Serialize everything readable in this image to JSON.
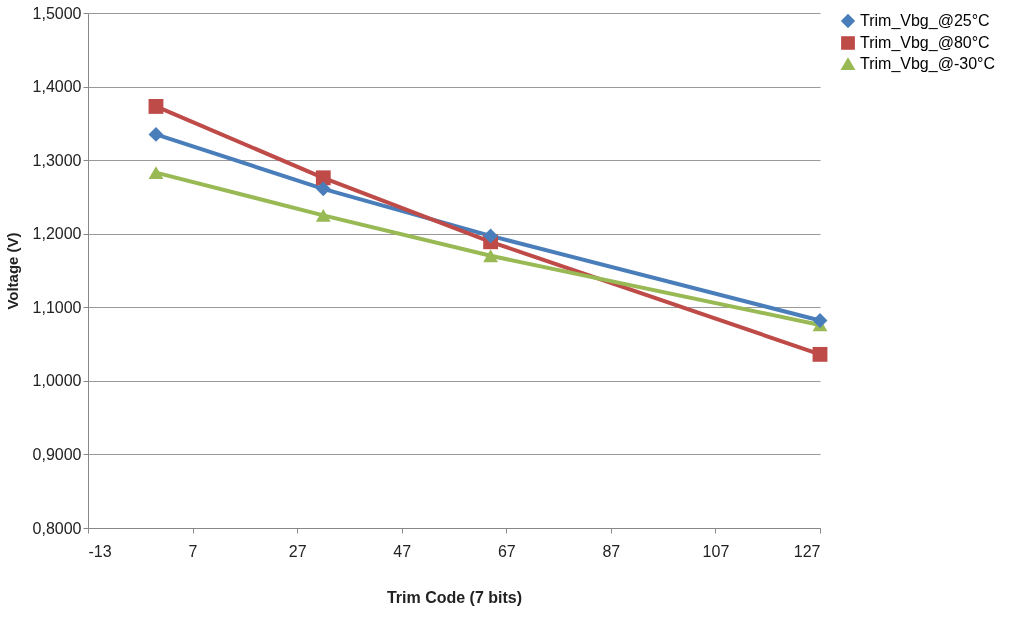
{
  "chart_data": {
    "type": "line",
    "xlabel": "Trim Code (7 bits)",
    "ylabel": "Voltage (V)",
    "x": [
      0,
      32,
      64,
      127
    ],
    "series": [
      {
        "name": "Trim_Vbg_@25°C",
        "color": "#4a7ebb",
        "marker": "diamond",
        "values": [
          1.335,
          1.261,
          1.197,
          1.082
        ]
      },
      {
        "name": "Trim_Vbg_@80°C",
        "color": "#be4b48",
        "marker": "square",
        "values": [
          1.373,
          1.276,
          1.189,
          1.036
        ]
      },
      {
        "name": "Trim_Vbg_@-30°C",
        "color": "#98b954",
        "marker": "triangle",
        "values": [
          1.283,
          1.225,
          1.17,
          1.076
        ]
      }
    ],
    "xlim": [
      -13,
      127
    ],
    "xticks": [
      -13,
      7,
      27,
      47,
      67,
      87,
      107,
      127
    ],
    "ylim": [
      0.8,
      1.5
    ],
    "yticks": [
      {
        "value": 0.8,
        "label": "0,8000"
      },
      {
        "value": 0.9,
        "label": "0,9000"
      },
      {
        "value": 1.0,
        "label": "1,0000"
      },
      {
        "value": 1.1,
        "label": "1,1000"
      },
      {
        "value": 1.2,
        "label": "1,2000"
      },
      {
        "value": 1.3,
        "label": "1,3000"
      },
      {
        "value": 1.4,
        "label": "1,4000"
      },
      {
        "value": 1.5,
        "label": "1,5000"
      }
    ],
    "grid": "y",
    "legend": "right",
    "line_style": "solid"
  }
}
